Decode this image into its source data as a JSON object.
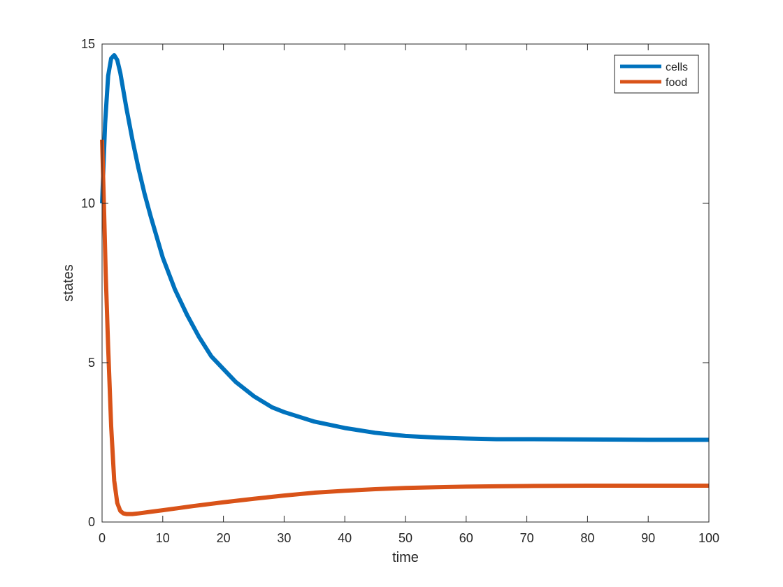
{
  "chart_data": {
    "type": "line",
    "title": "",
    "xlabel": "time",
    "ylabel": "states",
    "xlim": [
      0,
      100
    ],
    "ylim": [
      0,
      15
    ],
    "xticks": [
      0,
      10,
      20,
      30,
      40,
      50,
      60,
      70,
      80,
      90,
      100
    ],
    "yticks": [
      0,
      5,
      10,
      15
    ],
    "grid": false,
    "legend_position": "top-right",
    "series": [
      {
        "name": "cells",
        "color": "#0072BD",
        "x": [
          0,
          0.5,
          1,
          1.5,
          2,
          2.5,
          3,
          4,
          5,
          6,
          7,
          8,
          10,
          12,
          14,
          16,
          18,
          20,
          22,
          25,
          28,
          30,
          35,
          40,
          45,
          50,
          55,
          60,
          65,
          70,
          80,
          90,
          100
        ],
        "y": [
          10.0,
          12.5,
          14.0,
          14.55,
          14.65,
          14.5,
          14.1,
          13.0,
          12.0,
          11.1,
          10.3,
          9.6,
          8.3,
          7.3,
          6.5,
          5.8,
          5.2,
          4.8,
          4.4,
          3.95,
          3.6,
          3.45,
          3.15,
          2.95,
          2.8,
          2.7,
          2.65,
          2.62,
          2.6,
          2.6,
          2.59,
          2.58,
          2.58
        ]
      },
      {
        "name": "food",
        "color": "#D95319",
        "x": [
          0,
          0.3,
          0.6,
          1,
          1.5,
          2,
          2.5,
          3,
          3.5,
          4,
          5,
          6,
          8,
          10,
          15,
          20,
          25,
          30,
          35,
          40,
          45,
          50,
          55,
          60,
          65,
          70,
          80,
          90,
          100
        ],
        "y": [
          12.0,
          10.0,
          7.8,
          5.5,
          3.0,
          1.3,
          0.6,
          0.35,
          0.27,
          0.25,
          0.25,
          0.27,
          0.32,
          0.37,
          0.5,
          0.62,
          0.73,
          0.83,
          0.92,
          0.98,
          1.03,
          1.07,
          1.09,
          1.11,
          1.12,
          1.13,
          1.14,
          1.14,
          1.14
        ]
      }
    ]
  }
}
